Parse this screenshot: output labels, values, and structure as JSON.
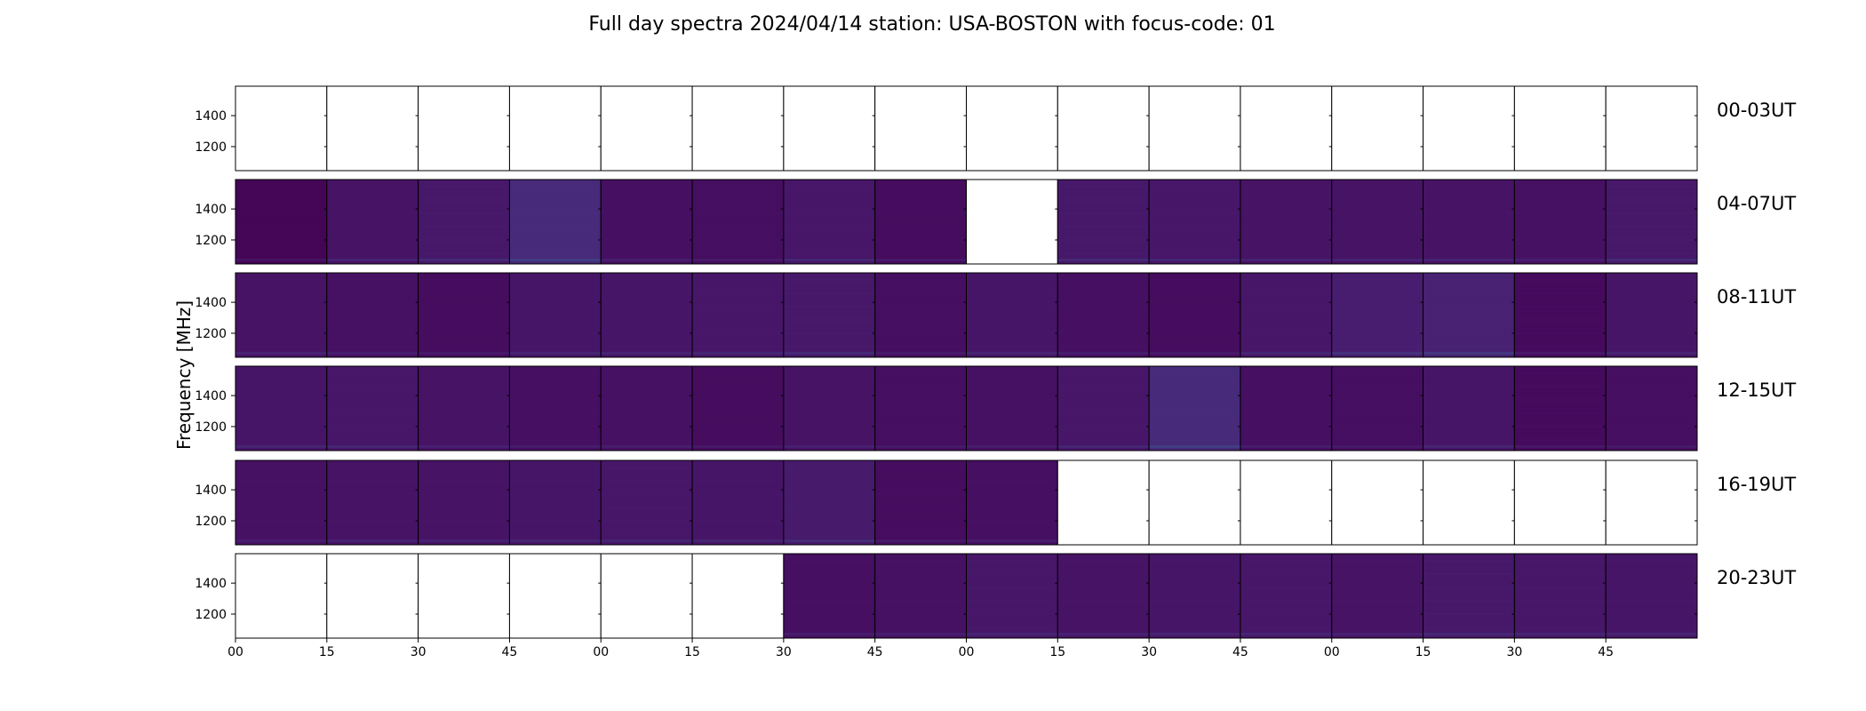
{
  "chart_data": {
    "type": "heatmap",
    "title": "Full day spectra 2024/04/14 station: USA-BOSTON with focus-code: 01",
    "ylabel": "Frequency [MHz]",
    "xlabel": "",
    "y_ticks": [
      "1400",
      "1200"
    ],
    "ylim": [
      1045,
      1590
    ],
    "x_ticks": [
      "00",
      "15",
      "30",
      "45",
      "00",
      "15",
      "30",
      "45",
      "00",
      "15",
      "30",
      "45",
      "00",
      "15",
      "30",
      "45"
    ],
    "rows": [
      "00-03UT",
      "04-07UT",
      "08-11UT",
      "12-15UT",
      "16-19UT",
      "20-23UT"
    ],
    "panels_per_row": 16,
    "colormap": "viridis",
    "panel_levels": [
      [
        null,
        null,
        null,
        null,
        null,
        null,
        null,
        null,
        null,
        null,
        null,
        null,
        null,
        null,
        null,
        null
      ],
      [
        0.02,
        0.1,
        0.13,
        0.22,
        0.08,
        0.07,
        0.12,
        0.06,
        null,
        0.13,
        0.12,
        0.1,
        0.1,
        0.1,
        0.09,
        0.13
      ],
      [
        0.1,
        0.09,
        0.06,
        0.11,
        0.11,
        0.12,
        0.13,
        0.07,
        0.11,
        0.08,
        0.06,
        0.12,
        0.16,
        0.18,
        0.05,
        0.11
      ],
      [
        0.11,
        0.12,
        0.1,
        0.08,
        0.09,
        0.06,
        0.1,
        0.07,
        0.09,
        0.12,
        0.22,
        0.08,
        0.07,
        0.11,
        0.05,
        0.07
      ],
      [
        0.09,
        0.1,
        0.1,
        0.11,
        0.12,
        0.11,
        0.14,
        0.06,
        0.08,
        null,
        null,
        null,
        null,
        null,
        null,
        null
      ],
      [
        null,
        null,
        null,
        null,
        null,
        null,
        0.08,
        0.09,
        0.12,
        0.1,
        0.11,
        0.12,
        0.1,
        0.13,
        0.12,
        0.11
      ]
    ]
  }
}
